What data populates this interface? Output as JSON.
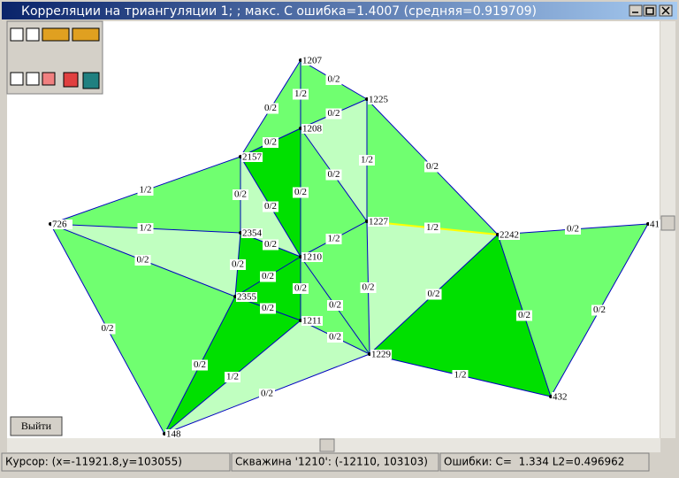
{
  "window": {
    "title": "Корреляции на триангуляции 1; ; макс. C ошибка=1.4007 (средняя=0.919709)"
  },
  "nodes": [
    {
      "label": "1207"
    },
    {
      "label": "1225"
    },
    {
      "label": "1208"
    },
    {
      "label": "2157"
    },
    {
      "label": "726"
    },
    {
      "label": "2354"
    },
    {
      "label": "1227"
    },
    {
      "label": "2242"
    },
    {
      "label": "41"
    },
    {
      "label": "1210"
    },
    {
      "label": "2355"
    },
    {
      "label": "1211"
    },
    {
      "label": "1229"
    },
    {
      "label": "432"
    },
    {
      "label": "148"
    }
  ],
  "edges": [
    {
      "label": "0/2"
    },
    {
      "label": "0/2"
    },
    {
      "label": "1/2"
    },
    {
      "label": "0/2"
    },
    {
      "label": "1/2"
    },
    {
      "label": "0/2"
    },
    {
      "label": "0/2"
    },
    {
      "label": "0/2"
    },
    {
      "label": "0/2"
    },
    {
      "label": "0/2"
    },
    {
      "label": "0/2"
    },
    {
      "label": "1/2"
    },
    {
      "label": "1/2"
    },
    {
      "label": "0/2"
    },
    {
      "label": "0/2"
    },
    {
      "label": "0/2"
    },
    {
      "label": "1/2"
    },
    {
      "label": "1/2"
    },
    {
      "label": "0/2"
    },
    {
      "label": "0/2"
    },
    {
      "label": "0/2"
    },
    {
      "label": "0/2"
    },
    {
      "label": "0/2"
    },
    {
      "label": "0/2"
    },
    {
      "label": "0/2"
    },
    {
      "label": "0/2"
    },
    {
      "label": "0/2"
    },
    {
      "label": "0/2"
    },
    {
      "label": "0/2"
    },
    {
      "label": "0/2"
    },
    {
      "label": "1/2"
    },
    {
      "label": "1/2"
    },
    {
      "label": "0/2"
    }
  ],
  "button": {
    "label": "Выйти"
  },
  "status": {
    "cursor": "Курсор: (x=-11921.8,y=103055)",
    "well": "Скважина '1210': (-12110, 103103)",
    "errors": "Ошибки: C=  1.334 L2=0.496962"
  }
}
